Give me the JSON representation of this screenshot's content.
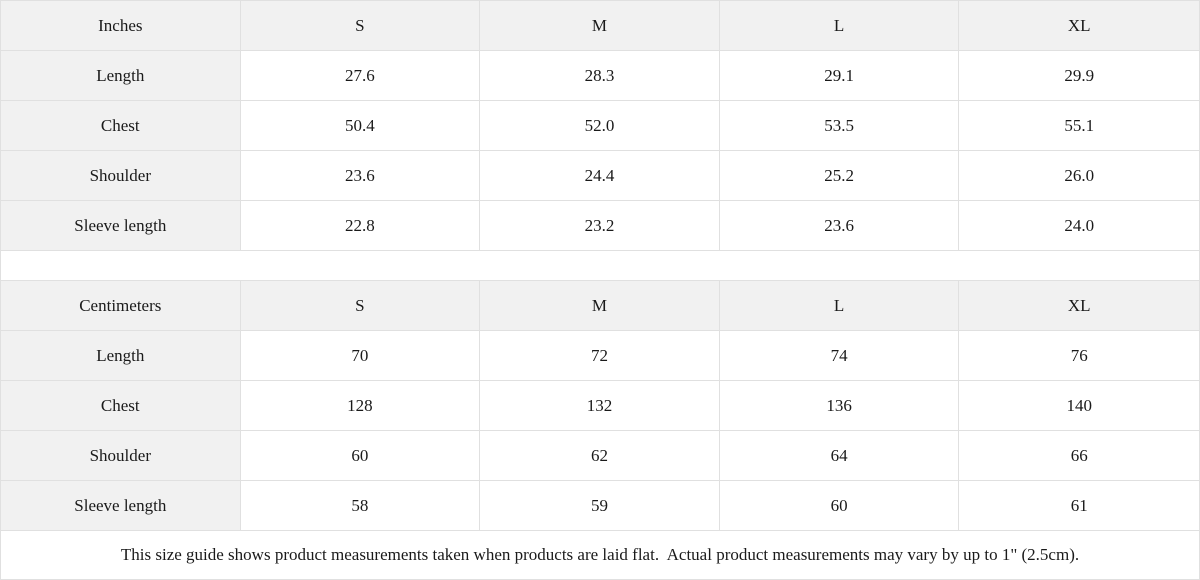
{
  "colors": {
    "header_bg": "#f1f1f1",
    "label_bg": "#f1f1f1",
    "cell_bg": "#ffffff",
    "border": "#e0e0e0",
    "text": "#1a1a1a"
  },
  "tables": [
    {
      "unit_label": "Inches",
      "size_headers": [
        "S",
        "M",
        "L",
        "XL"
      ],
      "rows": [
        {
          "label": "Length",
          "values": [
            "27.6",
            "28.3",
            "29.1",
            "29.9"
          ]
        },
        {
          "label": "Chest",
          "values": [
            "50.4",
            "52.0",
            "53.5",
            "55.1"
          ]
        },
        {
          "label": "Shoulder",
          "values": [
            "23.6",
            "24.4",
            "25.2",
            "26.0"
          ]
        },
        {
          "label": "Sleeve length",
          "values": [
            "22.8",
            "23.2",
            "23.6",
            "24.0"
          ]
        }
      ]
    },
    {
      "unit_label": "Centimeters",
      "size_headers": [
        "S",
        "M",
        "L",
        "XL"
      ],
      "rows": [
        {
          "label": "Length",
          "values": [
            "70",
            "72",
            "74",
            "76"
          ]
        },
        {
          "label": "Chest",
          "values": [
            "128",
            "132",
            "136",
            "140"
          ]
        },
        {
          "label": "Shoulder",
          "values": [
            "60",
            "62",
            "64",
            "66"
          ]
        },
        {
          "label": "Sleeve length",
          "values": [
            "58",
            "59",
            "60",
            "61"
          ]
        }
      ]
    }
  ],
  "footer": {
    "note": "This size guide shows product measurements taken when products are laid flat.  Actual product measurements may vary by up to 1\" (2.5cm)."
  }
}
